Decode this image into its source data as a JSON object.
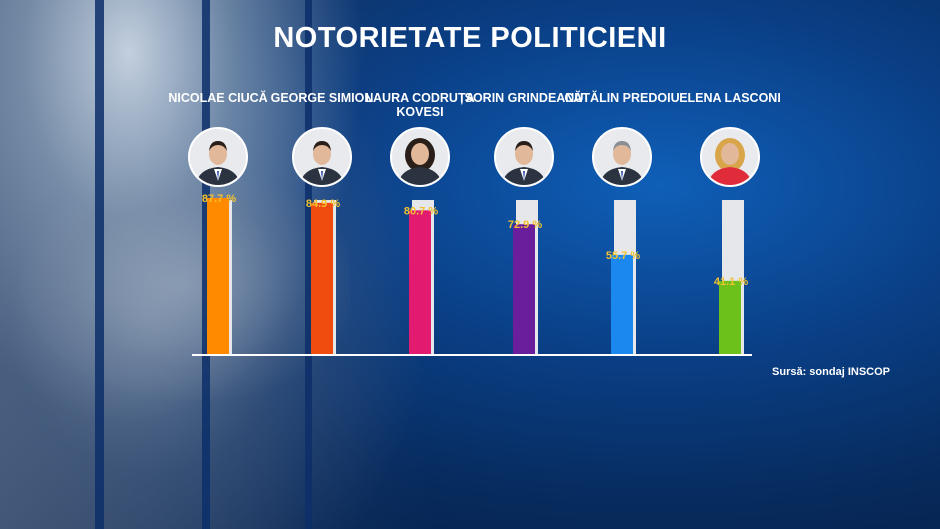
{
  "header": {
    "title": "NOTORIETATE POLITICIENI"
  },
  "source": "Sursă: sondaj INSCOP",
  "politicians": [
    {
      "name": "NICOLAE CIUCĂ",
      "color": "#ff8a00",
      "icon": "portrait-man-suit"
    },
    {
      "name": "GEORGE SIMION",
      "color": "#f04c10",
      "icon": "portrait-man-beard"
    },
    {
      "name": "LAURA CODRUȚA KOVESI",
      "color": "#e21a70",
      "icon": "portrait-woman-dark-hair"
    },
    {
      "name": "SORIN GRINDEANU",
      "color": "#6a1e9c",
      "icon": "portrait-man-suit"
    },
    {
      "name": "CĂTĂLIN PREDOIU",
      "color": "#1a88ee",
      "icon": "portrait-man-gray-hair"
    },
    {
      "name": "ELENA LASCONI",
      "color": "#6cc21a",
      "icon": "portrait-woman-blonde"
    }
  ],
  "chart_data": {
    "type": "bar",
    "title": "NOTORIETATE POLITICIENI",
    "categories": [
      "NICOLAE CIUCĂ",
      "GEORGE SIMION",
      "LAURA CODRUȚA KOVESI",
      "SORIN GRINDEANU",
      "CĂTĂLIN PREDOIU",
      "ELENA LASCONI"
    ],
    "values": [
      87.7,
      84.9,
      80.7,
      72.9,
      55.7,
      41.1
    ],
    "labels": [
      "87.7 %",
      "84.9 %",
      "80.7 %",
      "72.9 %",
      "55.7 %",
      "41.1 %"
    ],
    "colors": [
      "#ff8a00",
      "#f04c10",
      "#e21a70",
      "#6a1e9c",
      "#1a88ee",
      "#6cc21a"
    ],
    "ylim": [
      0,
      100
    ],
    "grid": false,
    "legend": "none"
  }
}
